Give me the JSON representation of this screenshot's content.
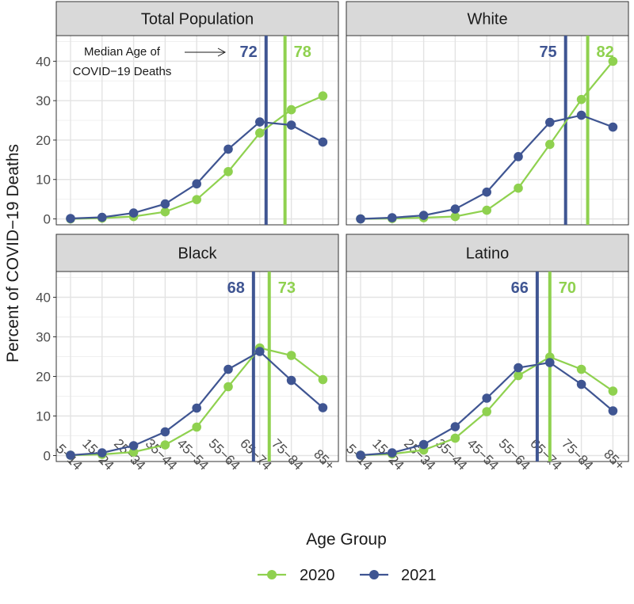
{
  "chart_data": {
    "type": "line",
    "ylabel": "Percent of COVID−19 Deaths",
    "xlabel": "Age Group",
    "categories": [
      "5−14",
      "15−24",
      "25−34",
      "35−44",
      "45−54",
      "55−64",
      "65−74",
      "75−84",
      "85+"
    ],
    "ylim": [
      -1.5,
      46.5
    ],
    "yticks": [
      0,
      10,
      20,
      30,
      40
    ],
    "grid": true,
    "legend": "bottom",
    "colors": {
      "2020": "#8fd14f",
      "2021": "#3f5592"
    },
    "legend_items": [
      {
        "key": "2020",
        "label": "2020"
      },
      {
        "key": "2021",
        "label": "2021"
      }
    ],
    "annotation": {
      "panel": 0,
      "line1": "Median Age of",
      "line2": "COVID−19 Deaths"
    },
    "panels": [
      {
        "title": "Total Population",
        "series": [
          {
            "key": "2020",
            "values": [
              0.0,
              0.2,
              0.6,
              1.8,
              4.9,
              12.0,
              21.8,
              27.7,
              31.2
            ]
          },
          {
            "key": "2021",
            "values": [
              0.1,
              0.4,
              1.5,
              3.8,
              8.9,
              17.7,
              24.6,
              23.8,
              19.5
            ]
          }
        ],
        "medians": [
          {
            "key": "2021",
            "label": "72",
            "value": 72
          },
          {
            "key": "2020",
            "label": "78",
            "value": 78
          }
        ]
      },
      {
        "title": "White",
        "series": [
          {
            "key": "2020",
            "values": [
              0.0,
              0.1,
              0.3,
              0.6,
              2.2,
              7.8,
              18.9,
              30.3,
              40.0
            ]
          },
          {
            "key": "2021",
            "values": [
              0.0,
              0.3,
              0.9,
              2.5,
              6.8,
              15.8,
              24.5,
              26.3,
              23.3
            ]
          }
        ],
        "medians": [
          {
            "key": "2021",
            "label": "75",
            "value": 75
          },
          {
            "key": "2020",
            "label": "82",
            "value": 82
          }
        ]
      },
      {
        "title": "Black",
        "series": [
          {
            "key": "2020",
            "values": [
              0.1,
              0.3,
              0.9,
              2.7,
              7.2,
              17.4,
              27.2,
              25.3,
              19.2
            ]
          },
          {
            "key": "2021",
            "values": [
              0.1,
              0.7,
              2.5,
              6.0,
              12.0,
              21.8,
              26.3,
              19.0,
              12.1
            ]
          }
        ],
        "medians": [
          {
            "key": "2021",
            "label": "68",
            "value": 68
          },
          {
            "key": "2020",
            "label": "73",
            "value": 73
          }
        ]
      },
      {
        "title": "Latino",
        "series": [
          {
            "key": "2020",
            "values": [
              0.1,
              0.4,
              1.4,
              4.4,
              11.1,
              20.2,
              24.9,
              21.8,
              16.3
            ]
          },
          {
            "key": "2021",
            "values": [
              0.1,
              0.7,
              2.8,
              7.3,
              14.5,
              22.2,
              23.5,
              18.0,
              11.3
            ]
          }
        ],
        "medians": [
          {
            "key": "2021",
            "label": "66",
            "value": 66
          },
          {
            "key": "2020",
            "label": "70",
            "value": 70
          }
        ]
      }
    ]
  }
}
